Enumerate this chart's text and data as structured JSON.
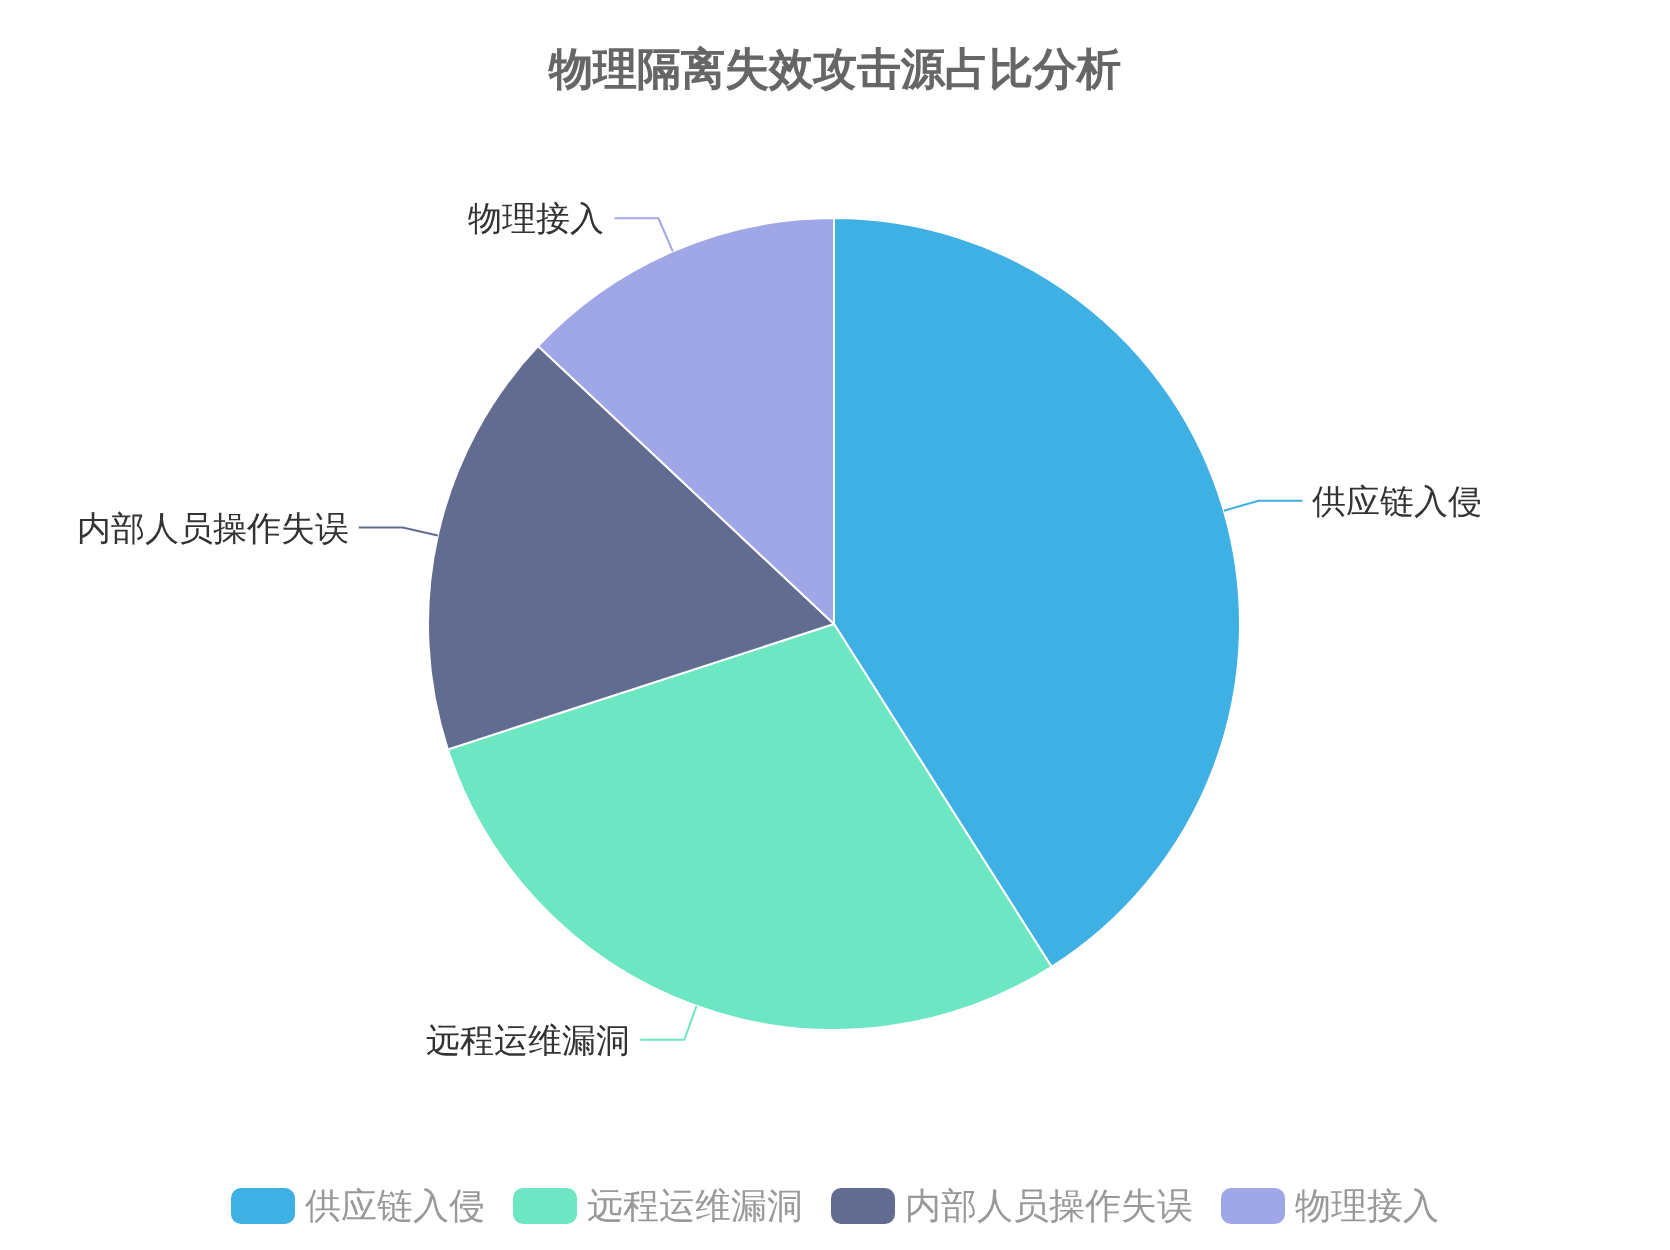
{
  "chart_data": {
    "type": "pie",
    "title": "物理隔离失效攻击源占比分析",
    "categories": [
      "供应链入侵",
      "远程运维漏洞",
      "内部人员操作失误",
      "物理接入"
    ],
    "values": [
      41,
      29,
      17,
      13
    ],
    "colors": [
      "#3eb0e3",
      "#6de6c3",
      "#626c91",
      "#a0a7e6"
    ],
    "legend": "bottom"
  }
}
